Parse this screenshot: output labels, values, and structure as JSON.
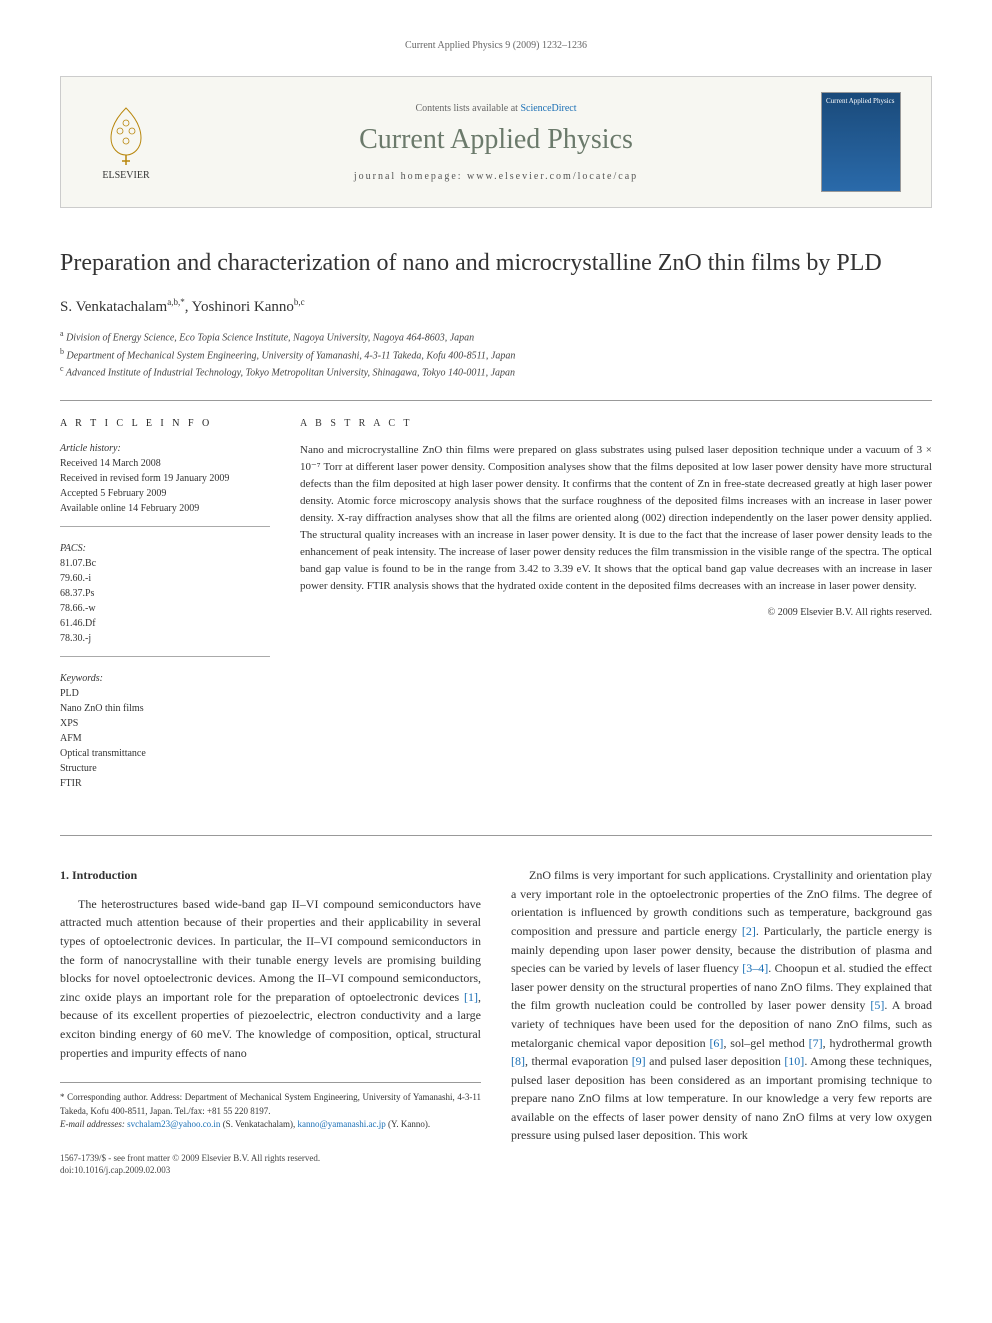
{
  "running_header": "Current Applied Physics 9 (2009) 1232–1236",
  "masthead": {
    "publisher": "ELSEVIER",
    "contents_prefix": "Contents lists available at ",
    "contents_link": "ScienceDirect",
    "journal_name": "Current Applied Physics",
    "homepage_label": "journal homepage: www.elsevier.com/locate/cap",
    "cover_title": "Current Applied Physics"
  },
  "title": "Preparation and characterization of nano and microcrystalline ZnO thin films by PLD",
  "authors_html": "S. Venkatachalam ᵃ,ᵇ,*, Yoshinori Kanno ᵇ,ᶜ",
  "authors": {
    "a1_name": "S. Venkatachalam",
    "a1_aff": "a,b,*",
    "a2_name": "Yoshinori Kanno",
    "a2_aff": "b,c"
  },
  "affiliations": {
    "a": "Division of Energy Science, Eco Topia Science Institute, Nagoya University, Nagoya 464-8603, Japan",
    "b": "Department of Mechanical System Engineering, University of Yamanashi, 4-3-11 Takeda, Kofu 400-8511, Japan",
    "c": "Advanced Institute of Industrial Technology, Tokyo Metropolitan University, Shinagawa, Tokyo 140-0011, Japan"
  },
  "article_info": {
    "heading": "A R T I C L E   I N F O",
    "history_label": "Article history:",
    "history": {
      "received": "Received 14 March 2008",
      "revised": "Received in revised form 19 January 2009",
      "accepted": "Accepted 5 February 2009",
      "online": "Available online 14 February 2009"
    },
    "pacs_label": "PACS:",
    "pacs": [
      "81.07.Bc",
      "79.60.-i",
      "68.37.Ps",
      "78.66.-w",
      "61.46.Df",
      "78.30.-j"
    ],
    "keywords_label": "Keywords:",
    "keywords": [
      "PLD",
      "Nano ZnO thin films",
      "XPS",
      "AFM",
      "Optical transmittance",
      "Structure",
      "FTIR"
    ]
  },
  "abstract": {
    "heading": "A B S T R A C T",
    "text": "Nano and microcrystalline ZnO thin films were prepared on glass substrates using pulsed laser deposition technique under a vacuum of 3 × 10⁻⁷ Torr at different laser power density. Composition analyses show that the films deposited at low laser power density have more structural defects than the film deposited at high laser power density. It confirms that the content of Zn in free-state decreased greatly at high laser power density. Atomic force microscopy analysis shows that the surface roughness of the deposited films increases with an increase in laser power density. X-ray diffraction analyses show that all the films are oriented along (002) direction independently on the laser power density applied. The structural quality increases with an increase in laser power density. It is due to the fact that the increase of laser power density leads to the enhancement of peak intensity. The increase of laser power density reduces the film transmission in the visible range of the spectra. The optical band gap value is found to be in the range from 3.42 to 3.39 eV. It shows that the optical band gap value decreases with an increase in laser power density. FTIR analysis shows that the hydrated oxide content in the deposited films decreases with an increase in laser power density.",
    "copyright": "© 2009 Elsevier B.V. All rights reserved."
  },
  "body": {
    "section_number": "1.",
    "section_title": "Introduction",
    "col1": "The heterostructures based wide-band gap II–VI compound semiconductors have attracted much attention because of their properties and their applicability in several types of optoelectronic devices. In particular, the II–VI compound semiconductors in the form of nanocrystalline with their tunable energy levels are promising building blocks for novel optoelectronic devices. Among the II–VI compound semiconductors, zinc oxide plays an important role for the preparation of optoelectronic devices [1], because of its excellent properties of piezoelectric, electron conductivity and a large exciton binding energy of 60 meV. The knowledge of composition, optical, structural properties and impurity effects of nano",
    "col2": "ZnO films is very important for such applications. Crystallinity and orientation play a very important role in the optoelectronic properties of the ZnO films. The degree of orientation is influenced by growth conditions such as temperature, background gas composition and pressure and particle energy [2]. Particularly, the particle energy is mainly depending upon laser power density, because the distribution of plasma and species can be varied by levels of laser fluency [3–4]. Choopun et al. studied the effect laser power density on the structural properties of nano ZnO films. They explained that the film growth nucleation could be controlled by laser power density [5]. A broad variety of techniques have been used for the deposition of nano ZnO films, such as metalorganic chemical vapor deposition [6], sol–gel method [7], hydrothermal growth [8], thermal evaporation [9] and pulsed laser deposition [10]. Among these techniques, pulsed laser deposition has been considered as an important promising technique to prepare nano ZnO films at low temperature. In our knowledge a very few reports are available on the effects of laser power density of nano ZnO films at very low oxygen pressure using pulsed laser deposition. This work"
  },
  "footnotes": {
    "corr_label": "* Corresponding author. Address: Department of Mechanical System Engineering, University of Yamanashi, 4-3-11 Takeda, Kofu 400-8511, Japan. Tel./fax: +81 55 220 8197.",
    "email_label": "E-mail addresses: ",
    "email1": "svchalam23@yahoo.co.in",
    "email1_who": " (S. Venkatachalam), ",
    "email2": "kanno@yamanashi.ac.jp",
    "email2_who": " (Y. Kanno)."
  },
  "footer": {
    "issn": "1567-1739/$ - see front matter © 2009 Elsevier B.V. All rights reserved.",
    "doi": "doi:10.1016/j.cap.2009.02.003"
  },
  "refs": {
    "r1": "[1]",
    "r2": "[2]",
    "r34": "[3–4]",
    "r5": "[5]",
    "r6": "[6]",
    "r7": "[7]",
    "r8": "[8]",
    "r9": "[9]",
    "r10": "[10]"
  },
  "colors": {
    "link": "#1a6fb5",
    "journal_title": "#6b7a6b",
    "border": "#cccccc",
    "cover_bg_top": "#1a4a7a",
    "cover_bg_bottom": "#2a6aaa"
  }
}
